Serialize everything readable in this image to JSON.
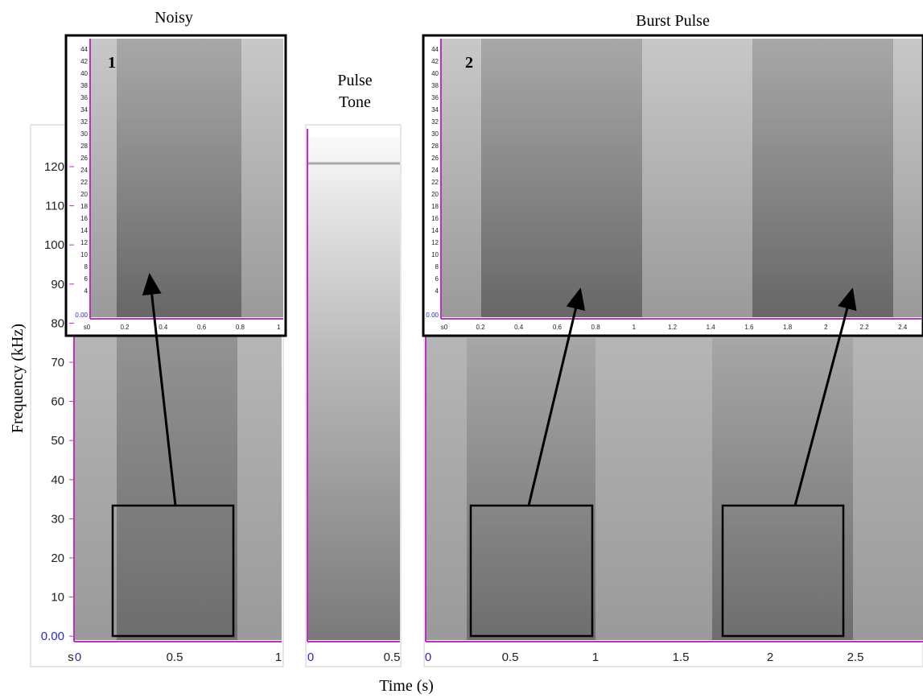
{
  "y_axis_label": "Frequency (kHz)",
  "x_axis_label": "Time (s)",
  "main_yticks": [
    "120",
    "110",
    "100",
    "90",
    "80",
    "70",
    "60",
    "50",
    "40",
    "30",
    "20",
    "10",
    "0.00"
  ],
  "panels": [
    {
      "title": "Noisy",
      "xticks": [
        "s",
        "0",
        "0.5",
        "1"
      ],
      "inset": {
        "label": "1",
        "yticks": [
          "44",
          "42",
          "40",
          "38",
          "36",
          "34",
          "32",
          "30",
          "28",
          "26",
          "24",
          "22",
          "20",
          "18",
          "16",
          "14",
          "12",
          "10",
          "8",
          "6",
          "4",
          "0.00"
        ],
        "xticks": [
          "s0",
          "0.2",
          "0.4",
          "0.6",
          "0.8",
          "1"
        ]
      }
    },
    {
      "title": [
        "Pulse",
        "Tone"
      ],
      "xticks": [
        "0",
        "0.5"
      ]
    },
    {
      "title": "Burst Pulse",
      "xticks": [
        "0",
        "0.5",
        "1",
        "1.5",
        "2",
        "2.5"
      ],
      "inset": {
        "label": "2",
        "yticks": [
          "44",
          "42",
          "40",
          "38",
          "36",
          "34",
          "32",
          "30",
          "28",
          "26",
          "24",
          "22",
          "20",
          "18",
          "16",
          "14",
          "12",
          "10",
          "8",
          "6",
          "4",
          "0.00"
        ],
        "xticks": [
          "s0",
          "0.2",
          "0.4",
          "0.6",
          "0.8",
          "1",
          "1.2",
          "1.4",
          "1.6",
          "1.8",
          "2",
          "2.2",
          "2.4"
        ]
      }
    }
  ]
}
